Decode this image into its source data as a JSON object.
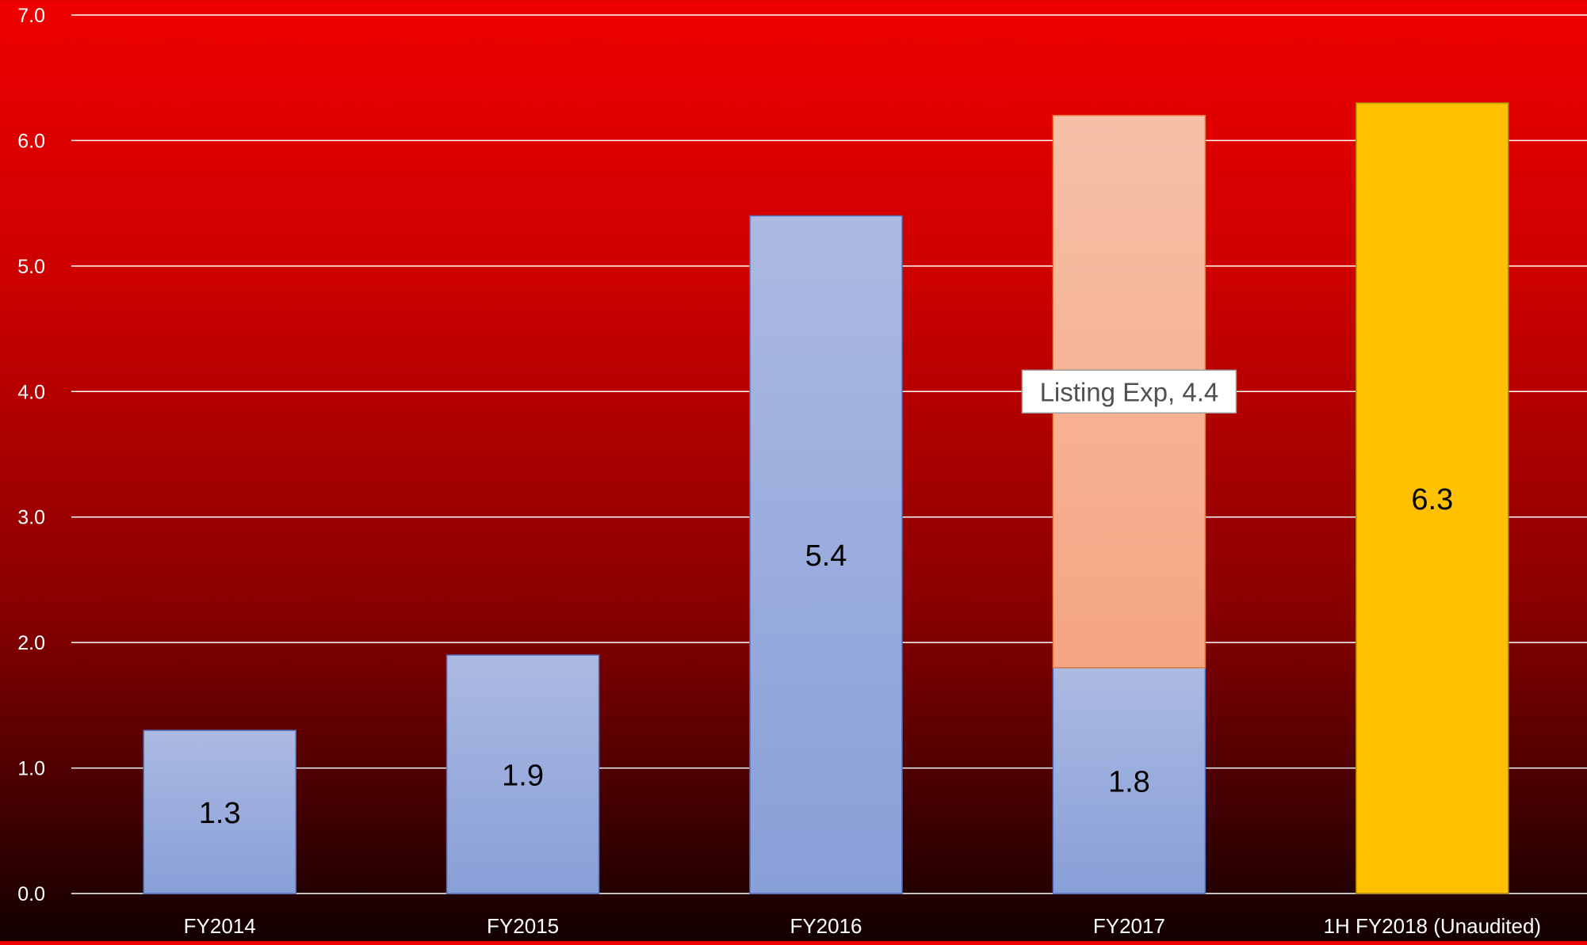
{
  "chart_data": {
    "type": "bar",
    "stacked": true,
    "categories": [
      "FY2014",
      "FY2015",
      "FY2016",
      "FY2017",
      "1H FY2018 (Unaudited)"
    ],
    "series": [
      {
        "values": [
          1.3,
          1.9,
          5.4,
          1.8,
          null
        ],
        "color": "#8fa6dc"
      },
      {
        "name": "Listing Exp",
        "values": [
          null,
          null,
          null,
          4.4,
          null
        ],
        "color": "#f5ae93"
      },
      {
        "values": [
          null,
          null,
          null,
          null,
          6.3
        ],
        "color": "#ffc000"
      }
    ],
    "data_labels": [
      "1.3",
      "1.9",
      "5.4",
      "1.8",
      "6.3"
    ],
    "annotation": "Listing Exp, 4.4",
    "yticks": [
      "0.0",
      "1.0",
      "2.0",
      "3.0",
      "4.0",
      "5.0",
      "6.0",
      "7.0"
    ],
    "ylim": [
      0,
      7
    ],
    "grid": true,
    "legend": "none",
    "title": "",
    "xlabel": "",
    "ylabel": ""
  }
}
